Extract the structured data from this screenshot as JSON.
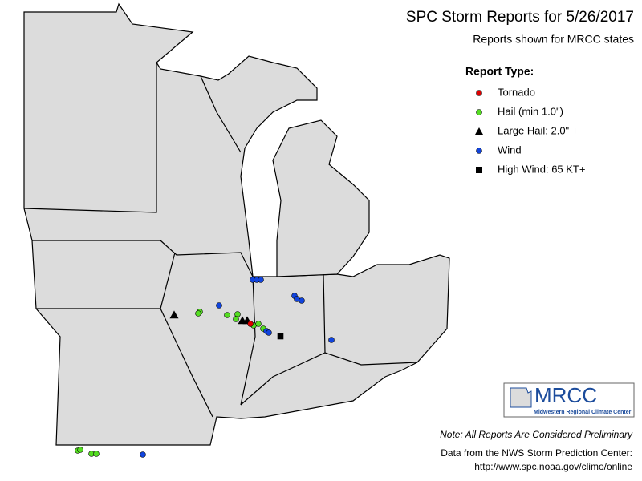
{
  "header": {
    "title": "SPC Storm Reports for 5/26/2017",
    "subtitle": "Reports shown for MRCC states"
  },
  "legend": {
    "title": "Report Type:",
    "items": [
      {
        "label": "Tornado",
        "color": "#e00000",
        "shape": "circle"
      },
      {
        "label": "Hail (min 1.0\")",
        "color": "#55dd22",
        "shape": "circle"
      },
      {
        "label": "Large Hail: 2.0\" +",
        "color": "#000000",
        "shape": "triangle"
      },
      {
        "label": "Wind",
        "color": "#1144dd",
        "shape": "circle"
      },
      {
        "label": "High Wind: 65 KT+",
        "color": "#000000",
        "shape": "square"
      }
    ]
  },
  "logo": {
    "text": "MRCC",
    "subtext": "Midwestern Regional Climate Center"
  },
  "notes": {
    "preliminary": "Note: All Reports Are Considered Preliminary",
    "source": "Data from the NWS Storm Prediction Center:",
    "url": "http://www.spc.noaa.gov/climo/online"
  }
}
